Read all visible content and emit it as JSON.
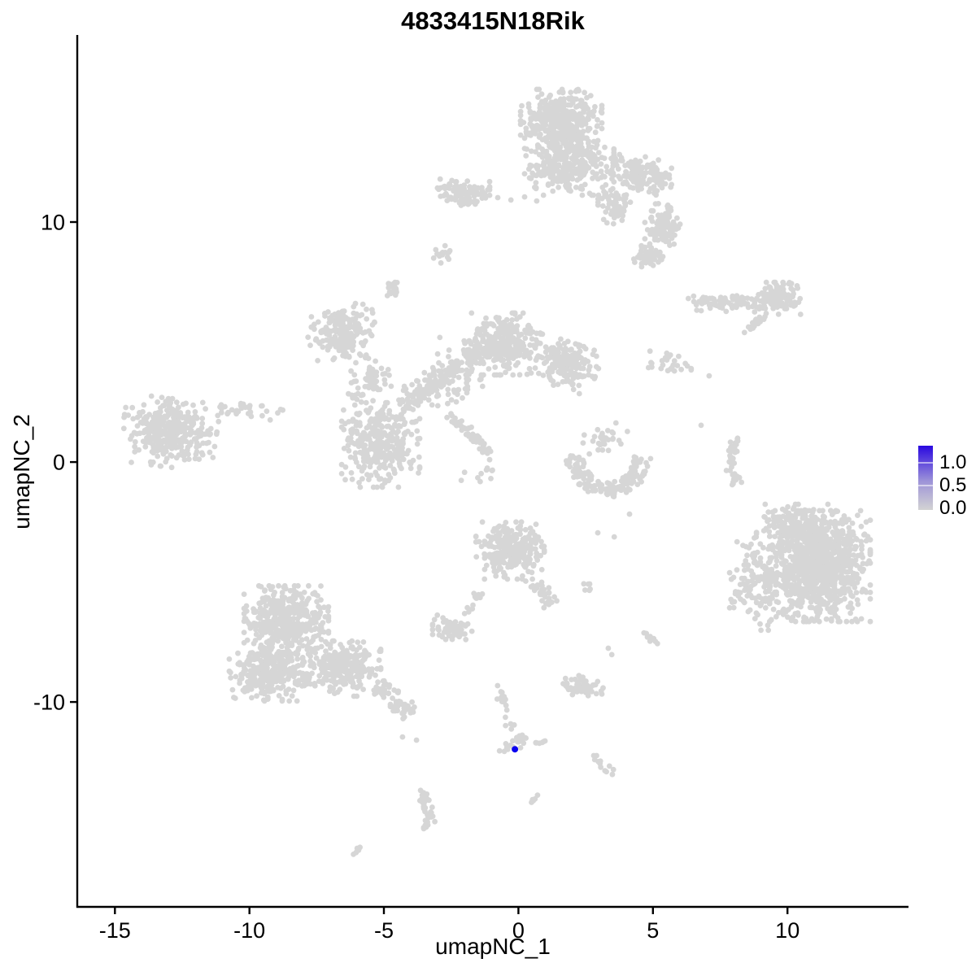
{
  "chart_data": {
    "type": "scatter",
    "title": "4833415N18Rik",
    "xlabel": "umapNC_1",
    "ylabel": "umapNC_2",
    "x_ticks": [
      -15,
      -10,
      -5,
      0,
      5,
      10
    ],
    "y_ticks": [
      -10,
      0,
      10
    ],
    "x_tick_labels": [
      "-15",
      "-10",
      "-5",
      "0",
      "5",
      "10"
    ],
    "y_tick_labels": [
      "-10",
      "0",
      "10"
    ],
    "x_range": [
      -16.4,
      14.5
    ],
    "y_range": [
      -18.54,
      17.73
    ],
    "grid": false,
    "background": "#FFFFFF",
    "axis_color": "#000000",
    "text_color": "#000000",
    "point_radius_px": 3.4,
    "base_color": "#D6D6D6",
    "highlight_color": "#0A00F0",
    "legend": {
      "position": "right",
      "labels": [
        "1.0",
        "0.5",
        "0.0"
      ],
      "gradient_top": "#2A08E0",
      "gradient_bottom": "#D3D3D3"
    },
    "highlight_points": [
      {
        "x": -0.13,
        "y": -11.97,
        "value": 1.0
      }
    ],
    "clusters": [
      {
        "cx": 1.59,
        "cy": 14.17,
        "rx": 1.51,
        "ry": 1.36,
        "n": 400
      },
      {
        "cx": 1.89,
        "cy": 12.31,
        "rx": 1.66,
        "ry": 1.19,
        "n": 300
      },
      {
        "cx": 4.61,
        "cy": 11.97,
        "rx": 1.15,
        "ry": 0.75,
        "rot": -15,
        "n": 150
      },
      {
        "cx": 5.37,
        "cy": 9.76,
        "rx": 0.67,
        "ry": 1.08,
        "n": 110
      },
      {
        "cx": 4.83,
        "cy": 8.54,
        "rx": 0.54,
        "ry": 0.47,
        "n": 55
      },
      {
        "cx": 3.56,
        "cy": 10.78,
        "rx": 0.6,
        "ry": 0.85,
        "n": 60
      },
      {
        "cx": -2.04,
        "cy": 11.22,
        "rx": 0.97,
        "ry": 0.58,
        "n": 110
      },
      {
        "cx": -2.85,
        "cy": 8.64,
        "rx": 0.3,
        "ry": 0.41,
        "n": 16
      },
      {
        "cx": -4.7,
        "cy": 7.32,
        "rx": 0.33,
        "ry": 0.47,
        "n": 20
      },
      {
        "cx": 9.69,
        "cy": 6.81,
        "rx": 0.91,
        "ry": 0.68,
        "n": 130
      },
      {
        "cx": -6.57,
        "cy": 5.42,
        "rx": 1.27,
        "ry": 1.08,
        "rot": 10,
        "n": 190
      },
      {
        "cx": -5.12,
        "cy": 0.71,
        "rx": 1.45,
        "ry": 1.76,
        "n": 330
      },
      {
        "cx": -5.61,
        "cy": 3.32,
        "rx": 0.91,
        "ry": 1.29,
        "n": 70
      },
      {
        "cx": -0.47,
        "cy": 4.92,
        "rx": 1.36,
        "ry": 1.29,
        "n": 280
      },
      {
        "cx": 1.8,
        "cy": 4.03,
        "rx": 1.15,
        "ry": 0.95,
        "rot": -20,
        "n": 190
      },
      {
        "cx": -2.34,
        "cy": 3.66,
        "rx": 1.36,
        "ry": 1.53,
        "n": 45
      },
      {
        "cx": -1.43,
        "cy": -0.58,
        "rx": 0.76,
        "ry": 0.85,
        "n": 12
      },
      {
        "cx": -12.98,
        "cy": 1.22,
        "rx": 1.75,
        "ry": 1.42,
        "rot": -8,
        "n": 340
      },
      {
        "cx": 3.2,
        "cy": 0.95,
        "rx": 0.85,
        "ry": 0.68,
        "n": 30
      },
      {
        "cx": 5.52,
        "cy": 4.11,
        "rx": 0.9,
        "ry": 0.6,
        "n": 25
      },
      {
        "cx": 11.21,
        "cy": -4.34,
        "rx": 1.87,
        "ry": 2.31,
        "n": 1050
      },
      {
        "cx": 9.0,
        "cy": -4.98,
        "rx": 1.15,
        "ry": 2.03,
        "n": 160
      },
      {
        "cx": 10.21,
        "cy": -2.61,
        "rx": 1.36,
        "ry": 0.85,
        "n": 140
      },
      {
        "cx": -0.31,
        "cy": -3.69,
        "rx": 1.27,
        "ry": 1.19,
        "n": 260
      },
      {
        "cx": -8.63,
        "cy": -6.58,
        "rx": 1.57,
        "ry": 1.42,
        "n": 420
      },
      {
        "cx": -9.3,
        "cy": -8.81,
        "rx": 1.45,
        "ry": 1.15,
        "n": 300
      },
      {
        "cx": -6.57,
        "cy": -8.61,
        "rx": 1.45,
        "ry": 1.15,
        "n": 260
      },
      {
        "cx": -2.46,
        "cy": -6.92,
        "rx": 0.73,
        "ry": 0.54,
        "n": 65
      },
      {
        "cx": 1.17,
        "cy": -5.93,
        "rx": 0.3,
        "ry": 0.21,
        "n": 7
      },
      {
        "cx": 2.32,
        "cy": -9.39,
        "rx": 0.82,
        "ry": 0.47,
        "rot": -10,
        "n": 55
      },
      {
        "cx": 4.92,
        "cy": -7.36,
        "rx": 0.36,
        "ry": 0.41,
        "n": 8
      },
      {
        "cx": 2.62,
        "cy": -5.27,
        "rx": 0.35,
        "ry": 0.2,
        "n": 6
      },
      {
        "cx": 0.59,
        "cy": -14.03,
        "rx": 0.2,
        "ry": 0.12,
        "rot": 45,
        "n": 5
      },
      {
        "cx": -6.03,
        "cy": -16.17,
        "rx": 0.2,
        "ry": 0.12,
        "rot": 45,
        "n": 5
      }
    ],
    "streams": [
      {
        "p": [
          [
            6.58,
            6.64
          ],
          [
            8.7,
            6.64
          ]
        ],
        "w": 0.35,
        "n": 70
      },
      {
        "p": [
          [
            8.55,
            5.53
          ],
          [
            9.3,
            6.2
          ]
        ],
        "w": 0.2,
        "n": 20
      },
      {
        "p": [
          [
            -4.31,
            2.31
          ],
          [
            -2.95,
            3.49
          ],
          [
            -1.59,
            4.51
          ],
          [
            -0.53,
            5.19
          ]
        ],
        "w": 0.5,
        "n": 220
      },
      {
        "p": [
          [
            -2.46,
            1.86
          ],
          [
            -1.07,
            0.44
          ]
        ],
        "w": 0.2,
        "n": 55
      },
      {
        "p": [
          [
            -11.11,
            2.14
          ],
          [
            -8.69,
            2.14
          ]
        ],
        "w": 0.35,
        "n": 30
      },
      {
        "p": [
          [
            8.09,
            1.05
          ],
          [
            7.85,
            -0.24
          ],
          [
            8.15,
            -0.98
          ]
        ],
        "w": 0.22,
        "n": 42
      },
      {
        "p": [
          [
            0.53,
            -4.98
          ],
          [
            1.23,
            -5.9
          ]
        ],
        "w": 0.3,
        "n": 25
      },
      {
        "p": [
          [
            -1.37,
            -5.34
          ],
          [
            -1.86,
            -6.24
          ]
        ],
        "w": 0.2,
        "n": 12
      },
      {
        "p": [
          [
            -5.21,
            -9.39
          ],
          [
            -4.0,
            -10.51
          ]
        ],
        "w": 0.4,
        "n": 65
      },
      {
        "p": [
          [
            -0.77,
            -9.39
          ],
          [
            -0.47,
            -10.41
          ],
          [
            -0.22,
            -11.19
          ]
        ],
        "w": 0.18,
        "n": 20
      },
      {
        "p": [
          [
            -0.53,
            -12.0
          ],
          [
            0.32,
            -11.42
          ]
        ],
        "w": 0.25,
        "n": 24
      },
      {
        "p": [
          [
            0.53,
            -11.76
          ],
          [
            1.05,
            -11.66
          ]
        ],
        "w": 0.12,
        "n": 7
      },
      {
        "p": [
          [
            2.74,
            -12.17
          ],
          [
            3.47,
            -13.02
          ]
        ],
        "w": 0.18,
        "n": 13
      },
      {
        "p": [
          [
            -3.55,
            -13.8
          ],
          [
            -3.3,
            -14.64
          ],
          [
            -3.48,
            -15.25
          ]
        ],
        "w": 0.25,
        "n": 38
      }
    ],
    "arcs": [
      {
        "cx": 3.35,
        "cy": 0.27,
        "rx": 1.27,
        "ry": 1.42,
        "a0": 180,
        "a1": 360,
        "w": 0.32,
        "n": 150
      }
    ],
    "singles": [
      [
        -0.77,
        11.02
      ],
      [
        -0.28,
        10.92
      ],
      [
        0.23,
        11.05
      ],
      [
        0.68,
        10.88
      ],
      [
        6.28,
        4.0
      ],
      [
        7.09,
        3.59
      ],
      [
        6.79,
        1.53
      ],
      [
        4.13,
        -2.17
      ],
      [
        3.34,
        -7.76
      ],
      [
        3.47,
        -8.03
      ],
      [
        -4.31,
        -11.46
      ],
      [
        -3.79,
        -11.59
      ],
      [
        2.95,
        -2.95
      ],
      [
        3.56,
        -3.12
      ]
    ]
  }
}
